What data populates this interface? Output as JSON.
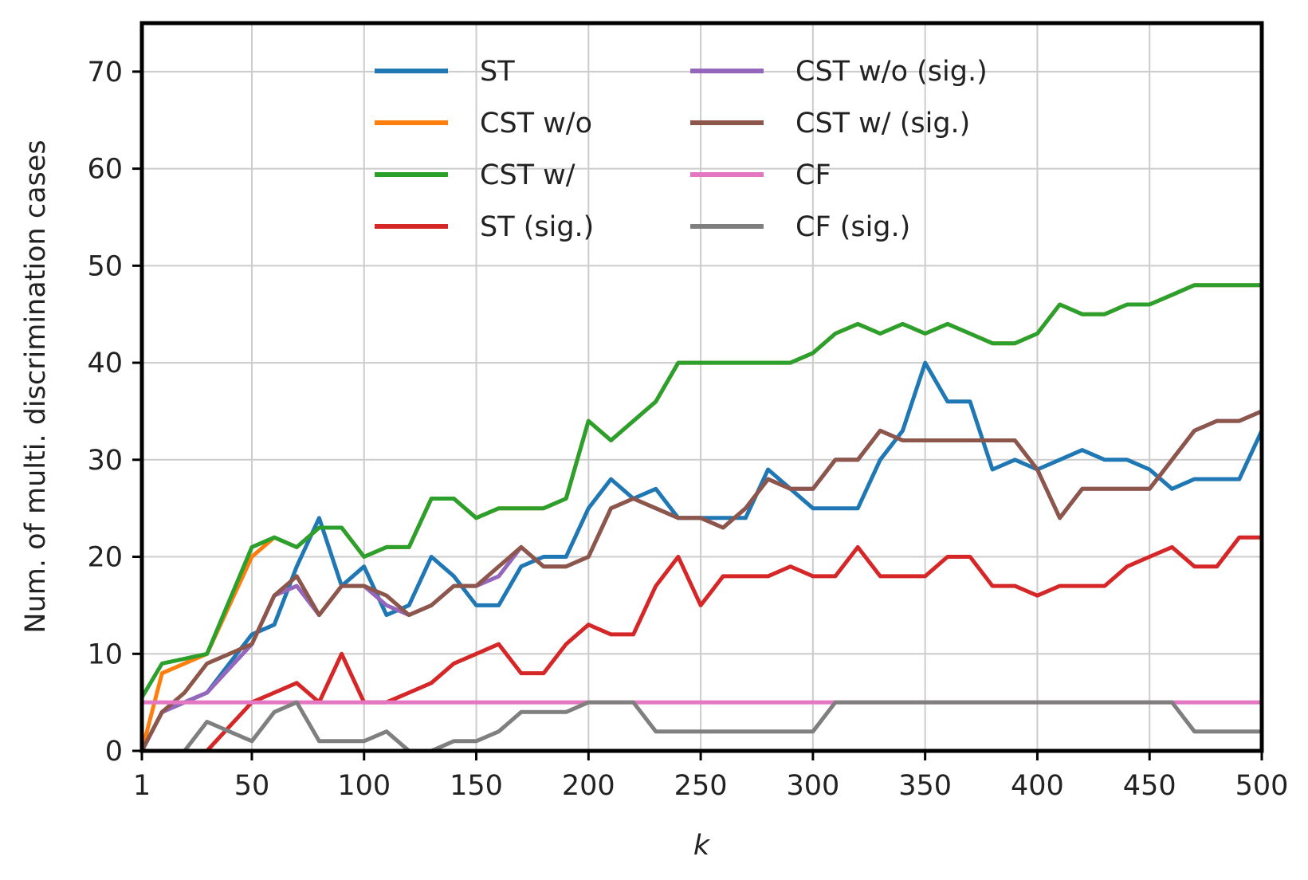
{
  "chart_data": {
    "type": "line",
    "title": "",
    "xlabel": "k",
    "ylabel": "Num. of multi. discrimination cases",
    "xlim": [
      1,
      500
    ],
    "ylim": [
      0,
      75
    ],
    "xticks": [
      1,
      50,
      100,
      150,
      200,
      250,
      300,
      350,
      400,
      450,
      500
    ],
    "xtick_labels": [
      "1",
      "50",
      "100",
      "150",
      "200",
      "250",
      "300",
      "350",
      "400",
      "450",
      "500"
    ],
    "yticks": [
      0,
      10,
      20,
      30,
      40,
      50,
      60,
      70
    ],
    "ytick_labels": [
      "0",
      "10",
      "20",
      "30",
      "40",
      "50",
      "60",
      "70"
    ],
    "grid": true,
    "legend_position": "upper-center, two columns",
    "x": [
      1,
      10,
      20,
      30,
      40,
      50,
      60,
      70,
      80,
      90,
      100,
      110,
      120,
      130,
      140,
      150,
      160,
      170,
      180,
      190,
      200,
      210,
      220,
      230,
      240,
      250,
      260,
      270,
      280,
      290,
      300,
      310,
      320,
      330,
      340,
      350,
      360,
      370,
      380,
      390,
      400,
      410,
      420,
      430,
      440,
      450,
      460,
      470,
      480,
      490,
      500
    ],
    "series": [
      {
        "name": "ST",
        "color": "#1f77b4",
        "values": [
          0,
          4,
          5,
          6,
          9,
          12,
          13,
          19,
          24,
          17,
          19,
          14,
          15,
          20,
          18,
          15,
          15,
          19,
          20,
          20,
          25,
          28,
          26,
          27,
          24,
          24,
          24,
          24,
          29,
          27,
          25,
          25,
          25,
          30,
          33,
          40,
          36,
          36,
          29,
          30,
          29,
          30,
          31,
          30,
          30,
          29,
          27,
          28,
          28,
          28,
          33
        ]
      },
      {
        "name": "CST w/o",
        "color": "#ff7f0e",
        "values": [
          0,
          8,
          9,
          10,
          15,
          20,
          22,
          21,
          23,
          23,
          20,
          21,
          21,
          26,
          26,
          24,
          25,
          25,
          25,
          26,
          34,
          32,
          34,
          36,
          40,
          40,
          40,
          40,
          40,
          40,
          41,
          43,
          44,
          43,
          44,
          43,
          44,
          43,
          42,
          42,
          43,
          46,
          45,
          45,
          46,
          46,
          47,
          48,
          48,
          48,
          48
        ]
      },
      {
        "name": "CST w/",
        "color": "#2ca02c",
        "values": [
          5.5,
          9,
          9.5,
          10,
          15.5,
          21,
          22,
          21,
          23,
          23,
          20,
          21,
          21,
          26,
          26,
          24,
          25,
          25,
          25,
          26,
          34,
          32,
          34,
          36,
          40,
          40,
          40,
          40,
          40,
          40,
          41,
          43,
          44,
          43,
          44,
          43,
          44,
          43,
          42,
          42,
          43,
          46,
          45,
          45,
          46,
          46,
          47,
          48,
          48,
          48,
          48
        ]
      },
      {
        "name": "ST (sig.)",
        "color": "#d62728",
        "values": [
          null,
          null,
          null,
          0,
          2.5,
          5,
          6,
          7,
          5,
          10,
          5,
          5,
          6,
          7,
          9,
          10,
          11,
          8,
          8,
          11,
          13,
          12,
          12,
          17,
          20,
          15,
          18,
          18,
          18,
          19,
          18,
          18,
          21,
          18,
          18,
          18,
          20,
          20,
          17,
          17,
          16,
          17,
          17,
          17,
          19,
          20,
          21,
          19,
          19,
          22,
          22
        ]
      },
      {
        "name": "CST w/o (sig.)",
        "color": "#9467bd",
        "values": [
          0,
          4,
          5,
          6,
          8.5,
          11,
          16,
          17,
          14,
          17,
          17,
          15,
          14,
          15,
          17,
          17,
          18,
          21,
          19,
          19,
          20,
          25,
          26,
          25,
          24,
          24,
          23,
          25,
          28,
          27,
          27,
          30,
          30,
          33,
          32,
          32,
          32,
          32,
          32,
          32,
          29,
          24,
          27,
          27,
          27,
          27,
          30,
          33,
          34,
          34,
          35
        ]
      },
      {
        "name": "CST w/ (sig.)",
        "color": "#8c564b",
        "values": [
          0,
          4,
          6,
          9,
          10,
          11,
          16,
          18,
          14,
          17,
          17,
          16,
          14,
          15,
          17,
          17,
          19,
          21,
          19,
          19,
          20,
          25,
          26,
          25,
          24,
          24,
          23,
          25,
          28,
          27,
          27,
          30,
          30,
          33,
          32,
          32,
          32,
          32,
          32,
          32,
          29,
          24,
          27,
          27,
          27,
          27,
          30,
          33,
          34,
          34,
          35
        ]
      },
      {
        "name": "CF",
        "color": "#e377c2",
        "values": [
          5,
          5,
          5,
          5,
          5,
          5,
          5,
          5,
          5,
          5,
          5,
          5,
          5,
          5,
          5,
          5,
          5,
          5,
          5,
          5,
          5,
          5,
          5,
          5,
          5,
          5,
          5,
          5,
          5,
          5,
          5,
          5,
          5,
          5,
          5,
          5,
          5,
          5,
          5,
          5,
          5,
          5,
          5,
          5,
          5,
          5,
          5,
          5,
          5,
          5,
          5
        ]
      },
      {
        "name": "CF (sig.)",
        "color": "#7f7f7f",
        "values": [
          null,
          null,
          0,
          3,
          2,
          1,
          4,
          5,
          1,
          1,
          1,
          2,
          0,
          0,
          1,
          1,
          2,
          4,
          4,
          4,
          5,
          5,
          5,
          2,
          2,
          2,
          2,
          2,
          2,
          2,
          2,
          5,
          5,
          5,
          5,
          5,
          5,
          5,
          5,
          5,
          5,
          5,
          5,
          5,
          5,
          5,
          5,
          2,
          2,
          2,
          2
        ]
      }
    ]
  }
}
